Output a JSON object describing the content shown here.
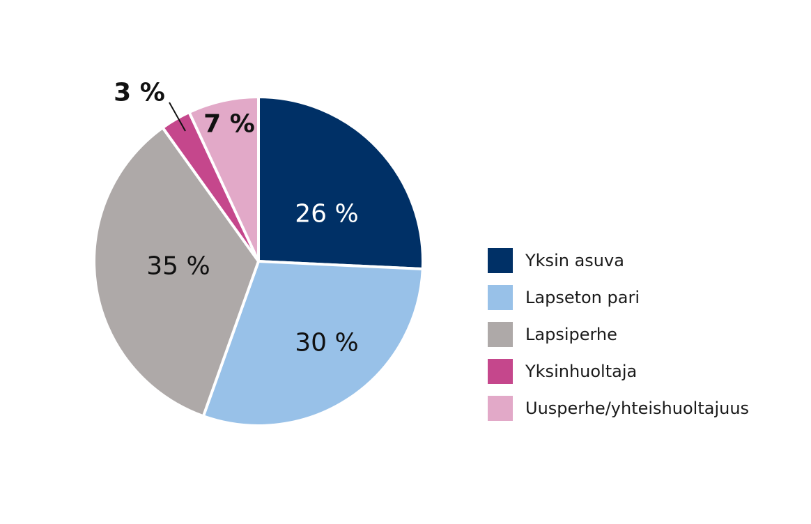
{
  "chart_data": {
    "type": "pie",
    "title": "",
    "start_angle_deg": 0,
    "direction": "clockwise",
    "legend_position": "right",
    "slices": [
      {
        "name": "Yksin asuva",
        "value": 26,
        "label": "26 %",
        "color": "#003066",
        "label_color": "#ffffff"
      },
      {
        "name": "Lapseton pari",
        "value": 30,
        "label": "30 %",
        "color": "#98c1e8",
        "label_color": "#111111"
      },
      {
        "name": "Lapsiperhe",
        "value": 35,
        "label": "35 %",
        "color": "#aea9a8",
        "label_color": "#111111"
      },
      {
        "name": "Yksinhuoltaja",
        "value": 3,
        "label": "3 %",
        "color": "#c5478c",
        "label_color": "#111111"
      },
      {
        "name": "Uusperhe/yhteishuoltajuus",
        "value": 7,
        "label": "7 %",
        "color": "#e2a9c8",
        "label_color": "#111111"
      }
    ]
  }
}
